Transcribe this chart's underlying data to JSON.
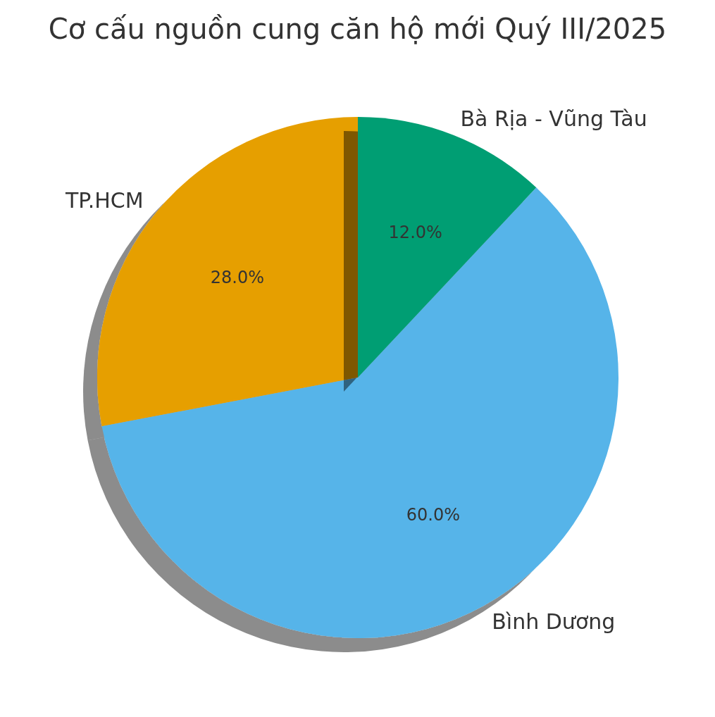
{
  "chart_data": {
    "type": "pie",
    "title": "Cơ cấu nguồn cung căn hộ mới Quý III/2025",
    "categories": [
      "TP.HCM",
      "Bình Dương",
      "Bà Rịa - Vũng Tàu"
    ],
    "values": [
      28,
      60,
      12
    ],
    "colors": [
      "#e69f00",
      "#56b4e9",
      "#009e73"
    ],
    "value_labels": [
      "28.0%",
      "60.0%",
      "12.0%"
    ]
  }
}
